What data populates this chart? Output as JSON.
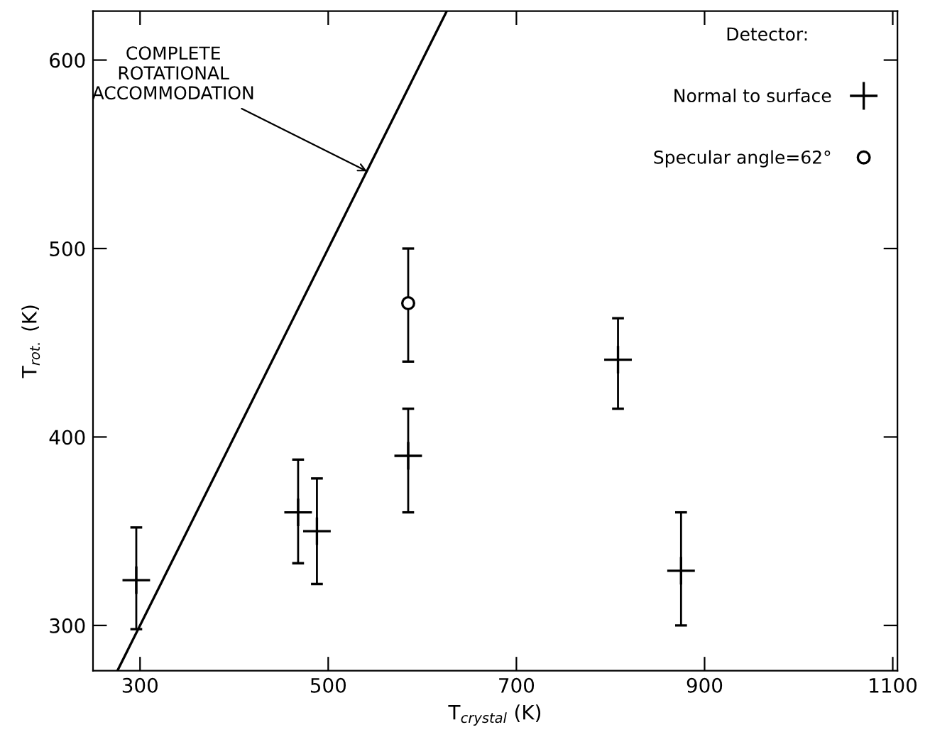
{
  "chart_data": {
    "type": "scatter",
    "xlabel": "T$_{crystal}$ (K)",
    "ylabel": "T$_{rot.}$ (K)",
    "legend_title": "Detector:",
    "xlim": [
      250,
      1105
    ],
    "ylim": [
      276,
      626
    ],
    "xticks": [
      300,
      500,
      700,
      900,
      1100
    ],
    "yticks": [
      300,
      400,
      500,
      600
    ],
    "grid": false,
    "legend": "top right",
    "series": [
      {
        "name": "Normal to surface",
        "color": "#000000",
        "marker": "cross",
        "x": [
          296,
          468,
          488,
          585,
          808,
          875
        ],
        "values": [
          324,
          360,
          350,
          390,
          441,
          329
        ],
        "errors": [
          [
            298,
            352
          ],
          [
            333,
            388
          ],
          [
            322,
            378
          ],
          [
            360,
            415
          ],
          [
            415,
            463
          ],
          [
            300,
            360
          ]
        ]
      },
      {
        "name": "Specular angle=62°",
        "color": "#000000",
        "marker": "circle",
        "x": [
          585
        ],
        "values": [
          471
        ],
        "errors": [
          [
            440,
            500
          ]
        ]
      },
      {
        "type": "line",
        "color": "#000000",
        "line_style": "solid",
        "x": [
          276,
          626
        ],
        "values": [
          276,
          626
        ]
      }
    ],
    "annotations": [
      {
        "text": "COMPLETE\nROTATIONAL\nACCOMMODATION",
        "x": 545,
        "y": 540
      }
    ]
  }
}
